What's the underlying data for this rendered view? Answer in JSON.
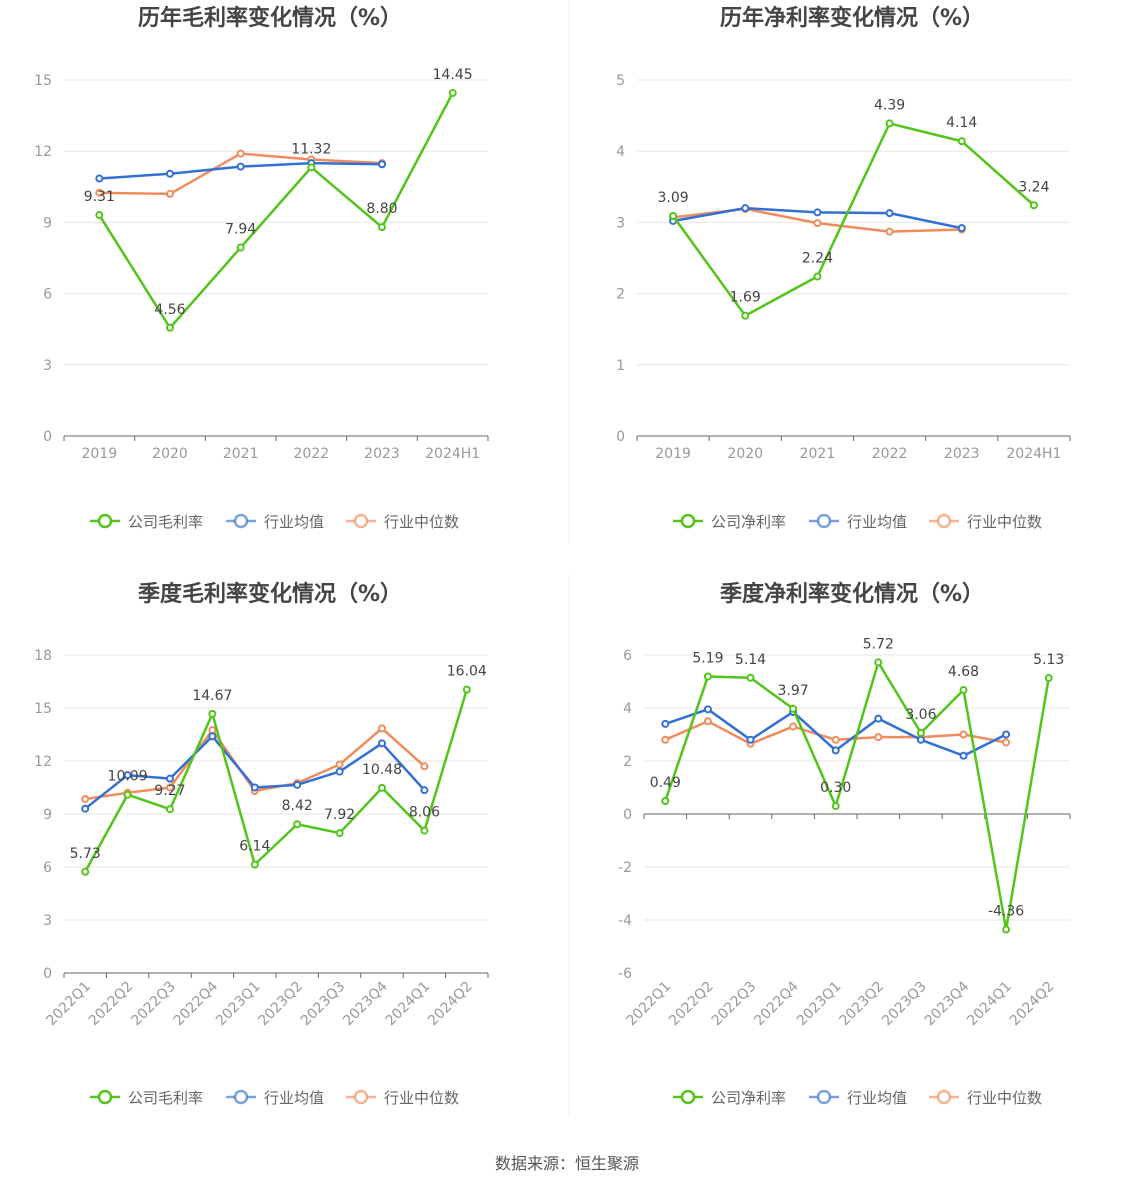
{
  "colors": {
    "company": "#52c41a",
    "avg": "#3370d4",
    "median": "#f08c5c",
    "grid": "#e6e6e6",
    "axis": "#666666"
  },
  "source": "数据来源：恒生聚源",
  "chart_data": [
    {
      "type": "line",
      "title": "历年毛利率变化情况（%）",
      "categories": [
        "2019",
        "2020",
        "2021",
        "2022",
        "2023",
        "2024H1"
      ],
      "ylim": [
        0,
        15
      ],
      "yticks": [
        0,
        3,
        6,
        9,
        12,
        15
      ],
      "legend": [
        "公司毛利率",
        "行业均值",
        "行业中位数"
      ],
      "series": [
        {
          "name": "公司毛利率",
          "values": [
            9.31,
            4.56,
            7.94,
            11.32,
            8.8,
            14.45
          ],
          "labels": [
            "9.31",
            "4.56",
            "7.94",
            "11.32",
            "8.80",
            "14.45"
          ]
        },
        {
          "name": "行业均值",
          "values": [
            10.85,
            11.05,
            11.35,
            11.5,
            11.45,
            null
          ]
        },
        {
          "name": "行业中位数",
          "values": [
            10.25,
            10.2,
            11.9,
            11.65,
            11.5,
            null
          ]
        }
      ]
    },
    {
      "type": "line",
      "title": "历年净利率变化情况（%）",
      "categories": [
        "2019",
        "2020",
        "2021",
        "2022",
        "2023",
        "2024H1"
      ],
      "ylim": [
        0,
        5
      ],
      "yticks": [
        0,
        1,
        2,
        3,
        4,
        5
      ],
      "legend": [
        "公司净利率",
        "行业均值",
        "行业中位数"
      ],
      "series": [
        {
          "name": "公司净利率",
          "values": [
            3.09,
            1.69,
            2.24,
            4.39,
            4.14,
            3.24
          ],
          "labels": [
            "3.09",
            "1.69",
            "2.24",
            "4.39",
            "4.14",
            "3.24"
          ]
        },
        {
          "name": "行业均值",
          "values": [
            3.02,
            3.2,
            3.14,
            3.13,
            2.92,
            null
          ]
        },
        {
          "name": "行业中位数",
          "values": [
            3.07,
            3.19,
            2.99,
            2.87,
            2.9,
            null
          ]
        }
      ]
    },
    {
      "type": "line",
      "title": "季度毛利率变化情况（%）",
      "categories": [
        "2022Q1",
        "2022Q2",
        "2022Q3",
        "2022Q4",
        "2023Q1",
        "2023Q2",
        "2023Q3",
        "2023Q4",
        "2024Q1",
        "2024Q2"
      ],
      "ylim": [
        0,
        18
      ],
      "yticks": [
        0,
        3,
        6,
        9,
        12,
        15,
        18
      ],
      "legend": [
        "公司毛利率",
        "行业均值",
        "行业中位数"
      ],
      "series": [
        {
          "name": "公司毛利率",
          "values": [
            5.73,
            10.09,
            9.27,
            14.67,
            6.14,
            8.42,
            7.92,
            10.48,
            8.06,
            16.04
          ],
          "labels": [
            "5.73",
            "10.09",
            "9.27",
            "14.67",
            "6.14",
            "8.42",
            "7.92",
            "10.48",
            "8.06",
            "16.04"
          ]
        },
        {
          "name": "行业均值",
          "values": [
            9.3,
            11.2,
            11.0,
            13.4,
            10.5,
            10.65,
            11.4,
            13.0,
            10.35,
            null
          ]
        },
        {
          "name": "行业中位数",
          "values": [
            9.85,
            10.2,
            10.5,
            13.75,
            10.3,
            10.75,
            11.8,
            13.85,
            11.7,
            null
          ]
        }
      ]
    },
    {
      "type": "line",
      "title": "季度净利率变化情况（%）",
      "categories": [
        "2022Q1",
        "2022Q2",
        "2022Q3",
        "2022Q4",
        "2023Q1",
        "2023Q2",
        "2023Q3",
        "2023Q4",
        "2024Q1",
        "2024Q2"
      ],
      "ylim": [
        -6,
        6
      ],
      "yticks": [
        -6,
        -4,
        -2,
        0,
        2,
        4,
        6
      ],
      "legend": [
        "公司净利率",
        "行业均值",
        "行业中位数"
      ],
      "series": [
        {
          "name": "公司净利率",
          "values": [
            0.49,
            5.19,
            5.14,
            3.97,
            0.3,
            5.72,
            3.06,
            4.68,
            -4.36,
            5.13
          ],
          "labels": [
            "0.49",
            "5.19",
            "5.14",
            "3.97",
            "0.30",
            "5.72",
            "3.06",
            "4.68",
            "-4.36",
            "5.13"
          ]
        },
        {
          "name": "行业均值",
          "values": [
            3.4,
            3.95,
            2.8,
            3.85,
            2.4,
            3.6,
            2.8,
            2.2,
            3.0,
            null
          ]
        },
        {
          "name": "行业中位数",
          "values": [
            2.8,
            3.5,
            2.65,
            3.3,
            2.8,
            2.9,
            2.9,
            3.0,
            2.7,
            null
          ]
        }
      ]
    }
  ]
}
